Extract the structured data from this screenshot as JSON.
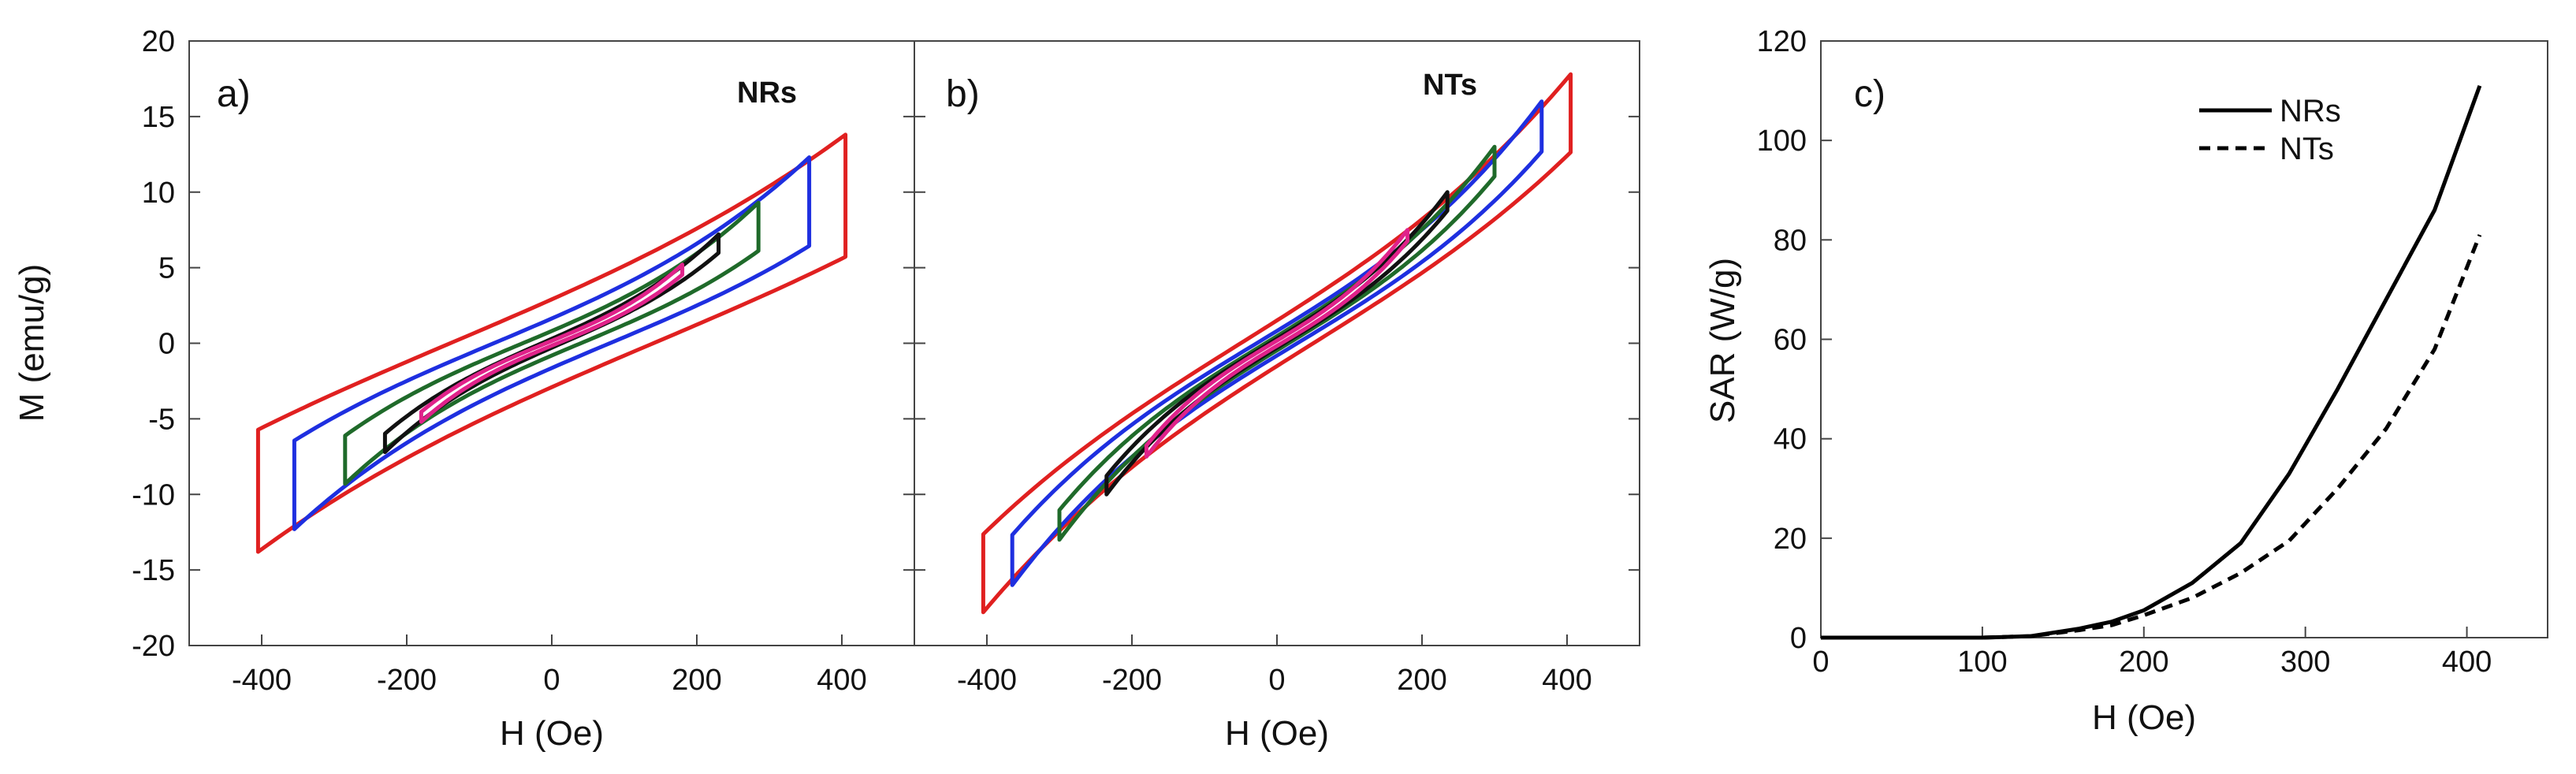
{
  "chart_data": [
    {
      "type": "line",
      "panel_label": "a)",
      "tag": "NRs",
      "xlabel": "H (Oe)",
      "ylabel": "M (emu/g)",
      "xlim": [
        -500,
        500
      ],
      "ylim": [
        -20,
        20
      ],
      "xticks": [
        -400,
        -200,
        0,
        200,
        400
      ],
      "yticks": [
        -20,
        -15,
        -10,
        -5,
        0,
        5,
        10,
        15,
        20
      ],
      "series": [
        {
          "name": "red loop",
          "color": "#e02020",
          "hmax": 405,
          "mmax": 13.8,
          "coercive_field": 140,
          "loop_shape": 0.24
        },
        {
          "name": "blue loop",
          "color": "#1e2fe0",
          "hmax": 355,
          "mmax": 12.3,
          "coercive_field": 80,
          "loop_shape": 0.4
        },
        {
          "name": "green loop",
          "color": "#1f6a2a",
          "hmax": 285,
          "mmax": 9.3,
          "coercive_field": 40,
          "loop_shape": 0.42
        },
        {
          "name": "black loop",
          "color": "#111111",
          "hmax": 230,
          "mmax": 7.2,
          "coercive_field": 14,
          "loop_shape": 0.4
        },
        {
          "name": "magenta loop",
          "color": "#e0228a",
          "hmax": 180,
          "mmax": 5.2,
          "coercive_field": 8,
          "loop_shape": 0.4
        }
      ]
    },
    {
      "type": "line",
      "panel_label": "b)",
      "tag": "NTs",
      "xlabel": "H (Oe)",
      "ylabel": "",
      "xlim": [
        -500,
        500
      ],
      "ylim": [
        -20,
        20
      ],
      "xticks": [
        -400,
        -200,
        0,
        200,
        400
      ],
      "yticks": [
        -20,
        -15,
        -10,
        -5,
        0,
        5,
        10,
        15,
        20
      ],
      "series": [
        {
          "name": "red loop",
          "color": "#e02020",
          "hmax": 405,
          "mmax": 17.8,
          "coercive_field": 50,
          "loop_shape": 0.3
        },
        {
          "name": "blue loop",
          "color": "#1e2fe0",
          "hmax": 365,
          "mmax": 16.0,
          "coercive_field": 28,
          "loop_shape": 0.4
        },
        {
          "name": "green loop",
          "color": "#1f6a2a",
          "hmax": 300,
          "mmax": 13.0,
          "coercive_field": 16,
          "loop_shape": 0.4
        },
        {
          "name": "black loop",
          "color": "#111111",
          "hmax": 235,
          "mmax": 10.0,
          "coercive_field": 10,
          "loop_shape": 0.4
        },
        {
          "name": "magenta loop",
          "color": "#e0228a",
          "hmax": 180,
          "mmax": 7.5,
          "coercive_field": 6,
          "loop_shape": 0.4
        }
      ]
    },
    {
      "type": "line",
      "panel_label": "c)",
      "xlabel": "H (Oe)",
      "ylabel": "SAR (W/g)",
      "xlim": [
        0,
        450
      ],
      "ylim": [
        0,
        120
      ],
      "xticks": [
        0,
        100,
        200,
        300,
        400
      ],
      "yticks": [
        0,
        20,
        40,
        60,
        80,
        100,
        120
      ],
      "legend_position": "top-right",
      "series": [
        {
          "name": "NRs",
          "style": "solid",
          "color": "#000000",
          "x": [
            0,
            50,
            100,
            130,
            160,
            180,
            200,
            230,
            260,
            290,
            320,
            350,
            380,
            408
          ],
          "y": [
            0,
            0,
            0,
            0.3,
            1.8,
            3.2,
            5.5,
            11,
            19,
            33,
            50,
            68,
            86,
            111
          ]
        },
        {
          "name": "NTs",
          "style": "dashed",
          "color": "#000000",
          "x": [
            0,
            50,
            100,
            130,
            160,
            180,
            200,
            230,
            260,
            290,
            320,
            350,
            380,
            408
          ],
          "y": [
            0,
            0,
            0,
            0.3,
            1.5,
            2.5,
            4.5,
            8,
            13,
            19.5,
            30,
            42,
            58,
            81
          ]
        }
      ]
    }
  ]
}
